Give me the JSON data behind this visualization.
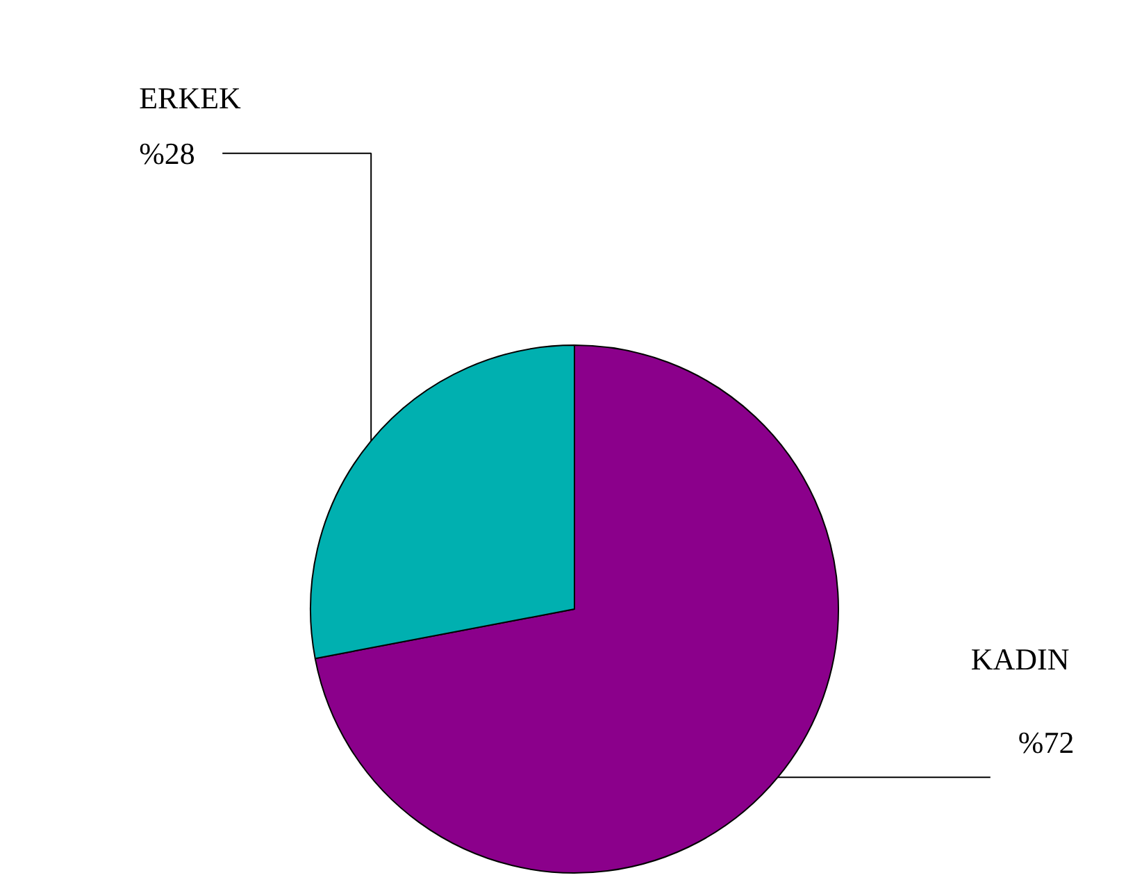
{
  "chart_data": {
    "type": "pie",
    "categories": [
      "KADIN",
      "ERKEK"
    ],
    "values": [
      72,
      28
    ],
    "colors": [
      "#8b008b",
      "#00b0b0"
    ],
    "value_labels": [
      "%72",
      "%28"
    ]
  }
}
